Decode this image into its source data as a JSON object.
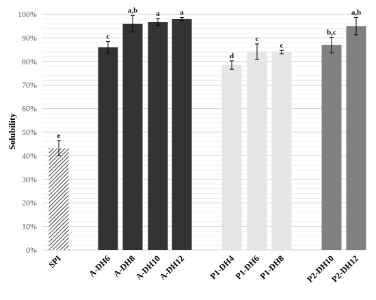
{
  "chart_data": {
    "type": "bar",
    "title": "",
    "xlabel": "",
    "ylabel": "Solubility",
    "ylim": [
      0,
      100
    ],
    "y_ticks": [
      "0%",
      "10%",
      "20%",
      "30%",
      "40%",
      "50%",
      "60%",
      "70%",
      "80%",
      "90%",
      "100%"
    ],
    "y_tick_values": [
      0,
      10,
      20,
      30,
      40,
      50,
      60,
      70,
      80,
      90,
      100
    ],
    "grid": true,
    "categories": [
      "SPI",
      "A-DH6",
      "A-DH8",
      "A-DH10",
      "A-DH12",
      "P1-DH4",
      "P1-DH6",
      "P1-DH8",
      "P2-DH10",
      "P2-DH12"
    ],
    "values": [
      43.2,
      86.0,
      96.0,
      96.8,
      98.0,
      78.5,
      84.2,
      84.0,
      87.0,
      95.0
    ],
    "errors": [
      3.2,
      2.5,
      3.5,
      1.5,
      0.7,
      1.8,
      3.3,
      0.8,
      3.3,
      3.7
    ],
    "significance_letters": [
      "e",
      "c",
      "a,b",
      "a",
      "a",
      "d",
      "c",
      "c",
      "b,c",
      "a,b"
    ],
    "groups": [
      {
        "members": [
          0
        ],
        "color": "#ffffff",
        "pattern": "diagonal-hatch"
      },
      {
        "members": [
          1,
          2,
          3,
          4
        ],
        "color": "#333333",
        "pattern": "solid"
      },
      {
        "members": [
          5,
          6,
          7
        ],
        "color": "#e6e6e6",
        "pattern": "solid"
      },
      {
        "members": [
          8,
          9
        ],
        "color": "#808080",
        "pattern": "solid"
      }
    ]
  }
}
